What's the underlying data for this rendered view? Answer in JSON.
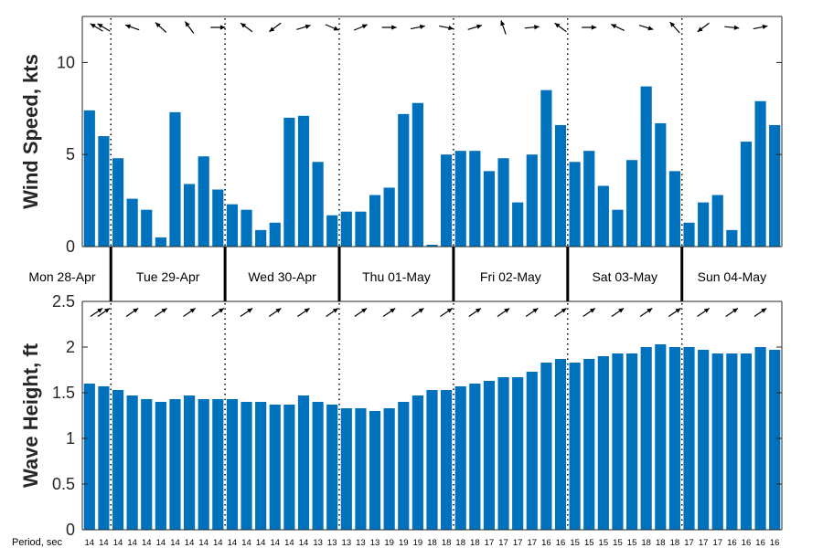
{
  "chart_data": [
    {
      "type": "bar",
      "ylabel": "Wind Speed, kts",
      "ylim": [
        0,
        12.5
      ],
      "yticks": [
        0,
        5,
        10
      ],
      "color": "#0072BD",
      "days": [
        "Mon 28-Apr",
        "Tue 29-Apr",
        "Wed 30-Apr",
        "Thu 01-May",
        "Fri 02-May",
        "Sat 03-May",
        "Sun 04-May"
      ],
      "values": [
        7.4,
        6.0,
        4.8,
        2.6,
        2.0,
        0.5,
        7.3,
        3.4,
        4.9,
        3.1,
        2.3,
        2.0,
        0.9,
        1.3,
        7.0,
        7.1,
        4.6,
        1.7,
        1.9,
        1.9,
        2.8,
        3.2,
        7.2,
        7.8,
        0.1,
        5.0,
        5.2,
        5.2,
        4.1,
        4.8,
        2.4,
        5.0,
        8.5,
        6.6,
        4.6,
        5.2,
        3.3,
        2.0,
        4.7,
        8.7,
        6.7,
        4.1,
        1.3,
        2.4,
        2.8,
        0.9,
        5.7,
        7.9,
        6.6
      ],
      "direction_arrows": "wind-direction-arrows"
    },
    {
      "type": "bar",
      "ylabel": "Wave Height, ft",
      "ylim": [
        0,
        2.5
      ],
      "yticks": [
        0,
        0.5,
        1,
        1.5,
        2,
        2.5
      ],
      "color": "#0072BD",
      "values": [
        1.6,
        1.57,
        1.53,
        1.47,
        1.43,
        1.4,
        1.43,
        1.47,
        1.43,
        1.43,
        1.43,
        1.4,
        1.4,
        1.37,
        1.37,
        1.47,
        1.4,
        1.37,
        1.33,
        1.33,
        1.3,
        1.33,
        1.4,
        1.47,
        1.53,
        1.53,
        1.57,
        1.6,
        1.63,
        1.67,
        1.67,
        1.73,
        1.83,
        1.87,
        1.83,
        1.87,
        1.9,
        1.93,
        1.93,
        2.0,
        2.03,
        2.0,
        2.0,
        1.97,
        1.93,
        1.93,
        1.93,
        2.0,
        1.97
      ],
      "period_label": "Period, sec",
      "periods": [
        "14",
        "14",
        "14",
        "14",
        "14",
        "14",
        "14",
        "14",
        "14",
        "14",
        "14",
        "14",
        "14",
        "14",
        "14",
        "14",
        "13",
        "13",
        "13",
        "13",
        "13",
        "19",
        "19",
        "19",
        "18",
        "18",
        "18",
        "18",
        "17",
        "17",
        "17",
        "17",
        "16",
        "16",
        "15",
        "15",
        "15",
        "15",
        "15",
        "18",
        "18",
        "18",
        "17",
        "17",
        "17",
        "16",
        "16",
        "16",
        "16"
      ],
      "direction_arrows": "wave-direction-arrows"
    }
  ]
}
